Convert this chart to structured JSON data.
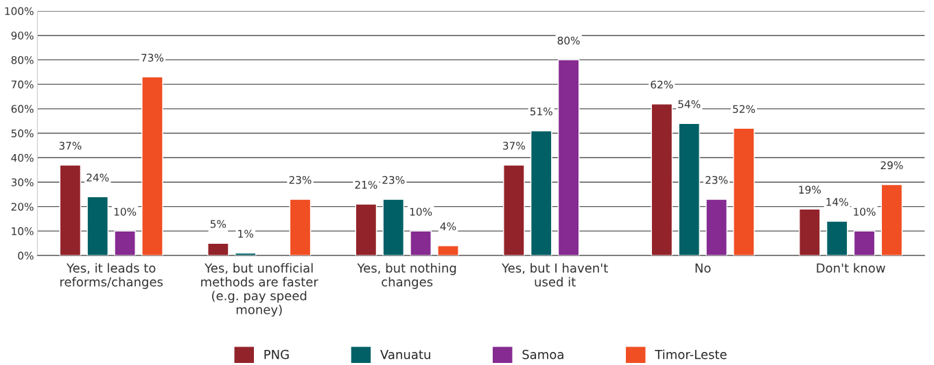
{
  "chart_data": {
    "type": "bar",
    "categories": [
      "Yes, it leads to\nreforms/changes",
      "Yes, but unofficial\nmethods are faster\n(e.g. pay speed\nmoney)",
      "Yes, but nothing\nchanges",
      "Yes, but I haven't\nused it",
      "No",
      "Don't know"
    ],
    "series": [
      {
        "name": "PNG",
        "color": "#93232a",
        "values": [
          37,
          5,
          21,
          37,
          62,
          19
        ],
        "value_labels": [
          "37%",
          "5%",
          "21%",
          "37%",
          "62%",
          "19%"
        ]
      },
      {
        "name": "Vanuatu",
        "color": "#006066",
        "values": [
          24,
          1,
          23,
          51,
          54,
          14
        ],
        "value_labels": [
          "24%",
          "1%",
          "23%",
          "51%",
          "54%",
          "14%"
        ]
      },
      {
        "name": "Samoa",
        "color": "#852b91",
        "values": [
          10,
          null,
          10,
          80,
          23,
          10
        ],
        "value_labels": [
          "10%",
          null,
          "10%",
          "80%",
          "23%",
          "10%"
        ]
      },
      {
        "name": "Timor-Leste",
        "color": "#f04e23",
        "values": [
          73,
          23,
          4,
          null,
          52,
          29
        ],
        "value_labels": [
          "73%",
          "23%",
          "4%",
          null,
          "52%",
          "29%"
        ]
      }
    ],
    "ylim": [
      0,
      100
    ],
    "yticks": [
      {
        "value": 0,
        "label": "0%"
      },
      {
        "value": 10,
        "label": "10%"
      },
      {
        "value": 20,
        "label": "20%"
      },
      {
        "value": 30,
        "label": "30%"
      },
      {
        "value": 40,
        "label": "40%"
      },
      {
        "value": 50,
        "label": "50%"
      },
      {
        "value": 60,
        "label": "60%"
      },
      {
        "value": 70,
        "label": "70%"
      },
      {
        "value": 80,
        "label": "80%"
      },
      {
        "value": 90,
        "label": "90%"
      },
      {
        "value": 100,
        "label": "100%"
      }
    ],
    "grid": "y",
    "legend": "bottom"
  }
}
